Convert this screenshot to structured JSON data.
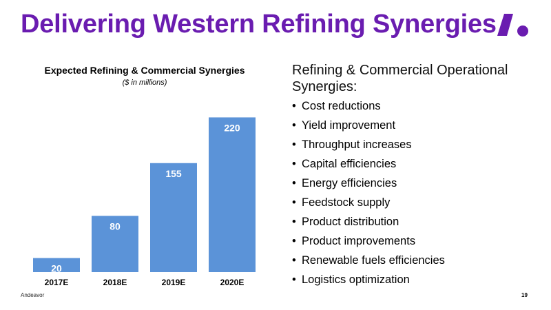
{
  "slide": {
    "title": "Delivering Western Refining Synergies",
    "footer": "Andeavor",
    "page_number": "19",
    "logo_color": "#6a1cb0"
  },
  "right_panel": {
    "heading": "Refining & Commercial Operational Synergies:",
    "bullet": "•",
    "items": [
      "Cost reductions",
      "Yield improvement",
      "Throughput increases",
      "Capital efficiencies",
      "Energy efficiencies",
      "Feedstock supply",
      "Product distribution",
      "Product improvements",
      "Renewable fuels efficiencies",
      "Logistics optimization"
    ]
  },
  "chart_data": {
    "type": "bar",
    "title": "Expected Refining & Commercial Synergies",
    "subtitle": "($ in millions)",
    "categories": [
      "2017E",
      "2018E",
      "2019E",
      "2020E"
    ],
    "values": [
      20,
      80,
      155,
      220
    ],
    "ylim": [
      0,
      240
    ],
    "bar_color": "#5b93d8",
    "label_color": "#ffffff",
    "gridlines": false,
    "legend": "none"
  }
}
